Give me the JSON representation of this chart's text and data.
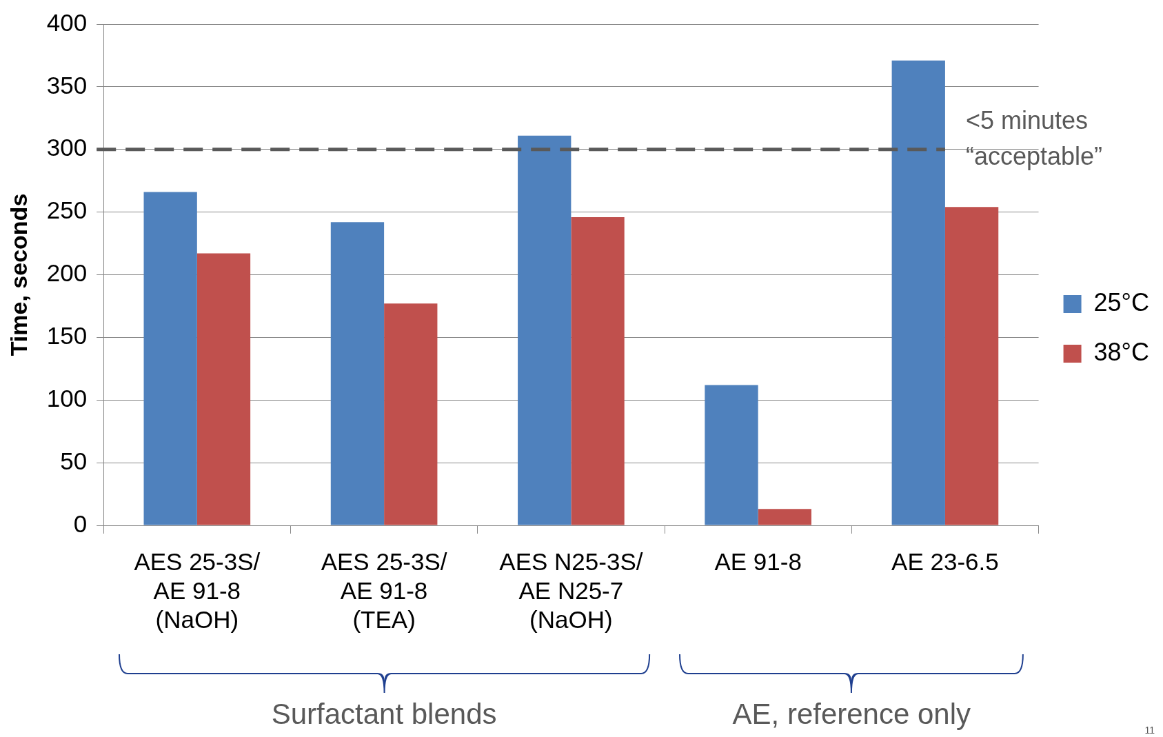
{
  "chart_data": {
    "type": "bar",
    "ylabel": "Time, seconds",
    "categories": [
      "AES 25-3S/\nAE 91-8\n(NaOH)",
      "AES 25-3S/\nAE 91-8\n(TEA)",
      "AES N25-3S/\nAE N25-7\n(NaOH)",
      "AE 91-8",
      "AE 23-6.5"
    ],
    "series": [
      {
        "name": "25°C",
        "color": "#4f81bd",
        "values": [
          266,
          242,
          311,
          112,
          371
        ]
      },
      {
        "name": "38°C",
        "color": "#c0504d",
        "values": [
          217,
          177,
          246,
          13,
          254
        ]
      }
    ],
    "ylim": [
      0,
      400
    ],
    "yticks": [
      0,
      50,
      100,
      150,
      200,
      250,
      300,
      350,
      400
    ],
    "grid": "y",
    "legend": "right",
    "ref_lines": [
      {
        "axis": "y",
        "value": 300,
        "label": "<5 minutes\n“acceptable”",
        "color": "#595959",
        "line_style": "dashed"
      }
    ],
    "annotations": [
      "Surfactant blends",
      "AE, reference only",
      "11"
    ]
  }
}
